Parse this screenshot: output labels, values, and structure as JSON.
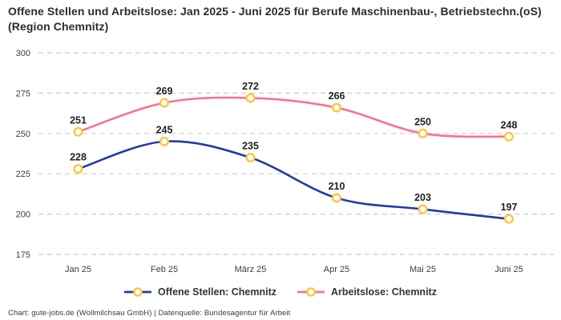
{
  "title": "Offene Stellen und Arbeitslose: Jan 2025 - Juni 2025 für Berufe Maschinenbau-, Betriebstechn.(oS) (Region Chemnitz)",
  "footer": {
    "credit": "Chart: gute-jobs.de (Wollmilchsau GmbH) | Datenquelle: Bundesagentur für Arbeit"
  },
  "chart_data": {
    "type": "line",
    "title": "Offene Stellen und Arbeitslose: Jan 2025 - Juni 2025 für Berufe Maschinenbau-, Betriebstechn.(oS) (Region Chemnitz)",
    "categories": [
      "Jan 25",
      "Feb 25",
      "März 25",
      "Apr 25",
      "Mai 25",
      "Juni 25"
    ],
    "series": [
      {
        "name": "Offene Stellen: Chemnitz",
        "values": [
          228,
          245,
          235,
          210,
          203,
          197
        ],
        "color": "#2239A5"
      },
      {
        "name": "Arbeitslose: Chemnitz",
        "values": [
          251,
          269,
          272,
          266,
          250,
          248
        ],
        "color": "#F97189"
      }
    ],
    "xlabel": "",
    "ylabel": "",
    "ylim": [
      175,
      300
    ],
    "ytick_step": 25,
    "yticks": [
      175,
      200,
      225,
      250,
      275,
      300
    ],
    "grid": "horizontal-dashed",
    "smooth": true,
    "data_labels": true,
    "legend_position": "bottom",
    "colors": {
      "marker_ring": "#FFC53D",
      "marker_fill": "#FFFFFF",
      "gridline": "#CDCDCD",
      "tick_label": "#3D3D3D",
      "data_label": "#222222",
      "title_text": "#2D2D2D"
    }
  }
}
